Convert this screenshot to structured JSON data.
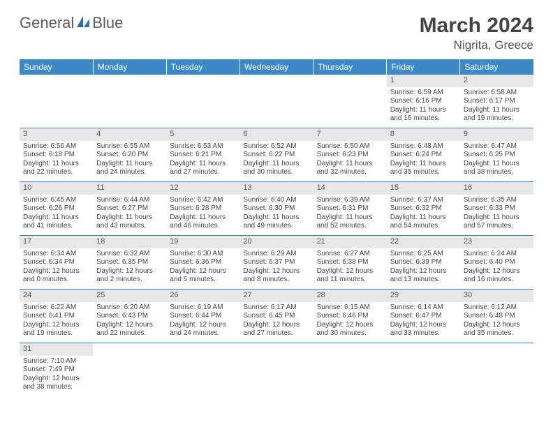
{
  "logo": {
    "part1": "General",
    "part2": "Blue"
  },
  "title": "March 2024",
  "subtitle": "Nigrita, Greece",
  "header_bg": "#3d88c7",
  "header_fg": "#ffffff",
  "daynum_bg": "#e7e7e7",
  "border_color": "#3d88c7",
  "daysOfWeek": [
    "Sunday",
    "Monday",
    "Tuesday",
    "Wednesday",
    "Thursday",
    "Friday",
    "Saturday"
  ],
  "weeks": [
    [
      null,
      null,
      null,
      null,
      null,
      {
        "n": "1",
        "sr": "Sunrise: 6:59 AM",
        "ss": "Sunset: 6:16 PM",
        "d1": "Daylight: 11 hours",
        "d2": "and 16 minutes."
      },
      {
        "n": "2",
        "sr": "Sunrise: 6:58 AM",
        "ss": "Sunset: 6:17 PM",
        "d1": "Daylight: 11 hours",
        "d2": "and 19 minutes."
      }
    ],
    [
      {
        "n": "3",
        "sr": "Sunrise: 6:56 AM",
        "ss": "Sunset: 6:18 PM",
        "d1": "Daylight: 11 hours",
        "d2": "and 22 minutes."
      },
      {
        "n": "4",
        "sr": "Sunrise: 6:55 AM",
        "ss": "Sunset: 6:20 PM",
        "d1": "Daylight: 11 hours",
        "d2": "and 24 minutes."
      },
      {
        "n": "5",
        "sr": "Sunrise: 6:53 AM",
        "ss": "Sunset: 6:21 PM",
        "d1": "Daylight: 11 hours",
        "d2": "and 27 minutes."
      },
      {
        "n": "6",
        "sr": "Sunrise: 6:52 AM",
        "ss": "Sunset: 6:22 PM",
        "d1": "Daylight: 11 hours",
        "d2": "and 30 minutes."
      },
      {
        "n": "7",
        "sr": "Sunrise: 6:50 AM",
        "ss": "Sunset: 6:23 PM",
        "d1": "Daylight: 11 hours",
        "d2": "and 32 minutes."
      },
      {
        "n": "8",
        "sr": "Sunrise: 6:48 AM",
        "ss": "Sunset: 6:24 PM",
        "d1": "Daylight: 11 hours",
        "d2": "and 35 minutes."
      },
      {
        "n": "9",
        "sr": "Sunrise: 6:47 AM",
        "ss": "Sunset: 6:25 PM",
        "d1": "Daylight: 11 hours",
        "d2": "and 38 minutes."
      }
    ],
    [
      {
        "n": "10",
        "sr": "Sunrise: 6:45 AM",
        "ss": "Sunset: 6:26 PM",
        "d1": "Daylight: 11 hours",
        "d2": "and 41 minutes."
      },
      {
        "n": "11",
        "sr": "Sunrise: 6:44 AM",
        "ss": "Sunset: 6:27 PM",
        "d1": "Daylight: 11 hours",
        "d2": "and 43 minutes."
      },
      {
        "n": "12",
        "sr": "Sunrise: 6:42 AM",
        "ss": "Sunset: 6:28 PM",
        "d1": "Daylight: 11 hours",
        "d2": "and 46 minutes."
      },
      {
        "n": "13",
        "sr": "Sunrise: 6:40 AM",
        "ss": "Sunset: 6:30 PM",
        "d1": "Daylight: 11 hours",
        "d2": "and 49 minutes."
      },
      {
        "n": "14",
        "sr": "Sunrise: 6:39 AM",
        "ss": "Sunset: 6:31 PM",
        "d1": "Daylight: 11 hours",
        "d2": "and 52 minutes."
      },
      {
        "n": "15",
        "sr": "Sunrise: 6:37 AM",
        "ss": "Sunset: 6:32 PM",
        "d1": "Daylight: 11 hours",
        "d2": "and 54 minutes."
      },
      {
        "n": "16",
        "sr": "Sunrise: 6:35 AM",
        "ss": "Sunset: 6:33 PM",
        "d1": "Daylight: 11 hours",
        "d2": "and 57 minutes."
      }
    ],
    [
      {
        "n": "17",
        "sr": "Sunrise: 6:34 AM",
        "ss": "Sunset: 6:34 PM",
        "d1": "Daylight: 12 hours",
        "d2": "and 0 minutes."
      },
      {
        "n": "18",
        "sr": "Sunrise: 6:32 AM",
        "ss": "Sunset: 6:35 PM",
        "d1": "Daylight: 12 hours",
        "d2": "and 2 minutes."
      },
      {
        "n": "19",
        "sr": "Sunrise: 6:30 AM",
        "ss": "Sunset: 6:36 PM",
        "d1": "Daylight: 12 hours",
        "d2": "and 5 minutes."
      },
      {
        "n": "20",
        "sr": "Sunrise: 6:29 AM",
        "ss": "Sunset: 6:37 PM",
        "d1": "Daylight: 12 hours",
        "d2": "and 8 minutes."
      },
      {
        "n": "21",
        "sr": "Sunrise: 6:27 AM",
        "ss": "Sunset: 6:38 PM",
        "d1": "Daylight: 12 hours",
        "d2": "and 11 minutes."
      },
      {
        "n": "22",
        "sr": "Sunrise: 6:25 AM",
        "ss": "Sunset: 6:39 PM",
        "d1": "Daylight: 12 hours",
        "d2": "and 13 minutes."
      },
      {
        "n": "23",
        "sr": "Sunrise: 6:24 AM",
        "ss": "Sunset: 6:40 PM",
        "d1": "Daylight: 12 hours",
        "d2": "and 16 minutes."
      }
    ],
    [
      {
        "n": "24",
        "sr": "Sunrise: 6:22 AM",
        "ss": "Sunset: 6:41 PM",
        "d1": "Daylight: 12 hours",
        "d2": "and 19 minutes."
      },
      {
        "n": "25",
        "sr": "Sunrise: 6:20 AM",
        "ss": "Sunset: 6:43 PM",
        "d1": "Daylight: 12 hours",
        "d2": "and 22 minutes."
      },
      {
        "n": "26",
        "sr": "Sunrise: 6:19 AM",
        "ss": "Sunset: 6:44 PM",
        "d1": "Daylight: 12 hours",
        "d2": "and 24 minutes."
      },
      {
        "n": "27",
        "sr": "Sunrise: 6:17 AM",
        "ss": "Sunset: 6:45 PM",
        "d1": "Daylight: 12 hours",
        "d2": "and 27 minutes."
      },
      {
        "n": "28",
        "sr": "Sunrise: 6:15 AM",
        "ss": "Sunset: 6:46 PM",
        "d1": "Daylight: 12 hours",
        "d2": "and 30 minutes."
      },
      {
        "n": "29",
        "sr": "Sunrise: 6:14 AM",
        "ss": "Sunset: 6:47 PM",
        "d1": "Daylight: 12 hours",
        "d2": "and 33 minutes."
      },
      {
        "n": "30",
        "sr": "Sunrise: 6:12 AM",
        "ss": "Sunset: 6:48 PM",
        "d1": "Daylight: 12 hours",
        "d2": "and 35 minutes."
      }
    ],
    [
      {
        "n": "31",
        "sr": "Sunrise: 7:10 AM",
        "ss": "Sunset: 7:49 PM",
        "d1": "Daylight: 12 hours",
        "d2": "and 38 minutes."
      },
      null,
      null,
      null,
      null,
      null,
      null
    ]
  ]
}
